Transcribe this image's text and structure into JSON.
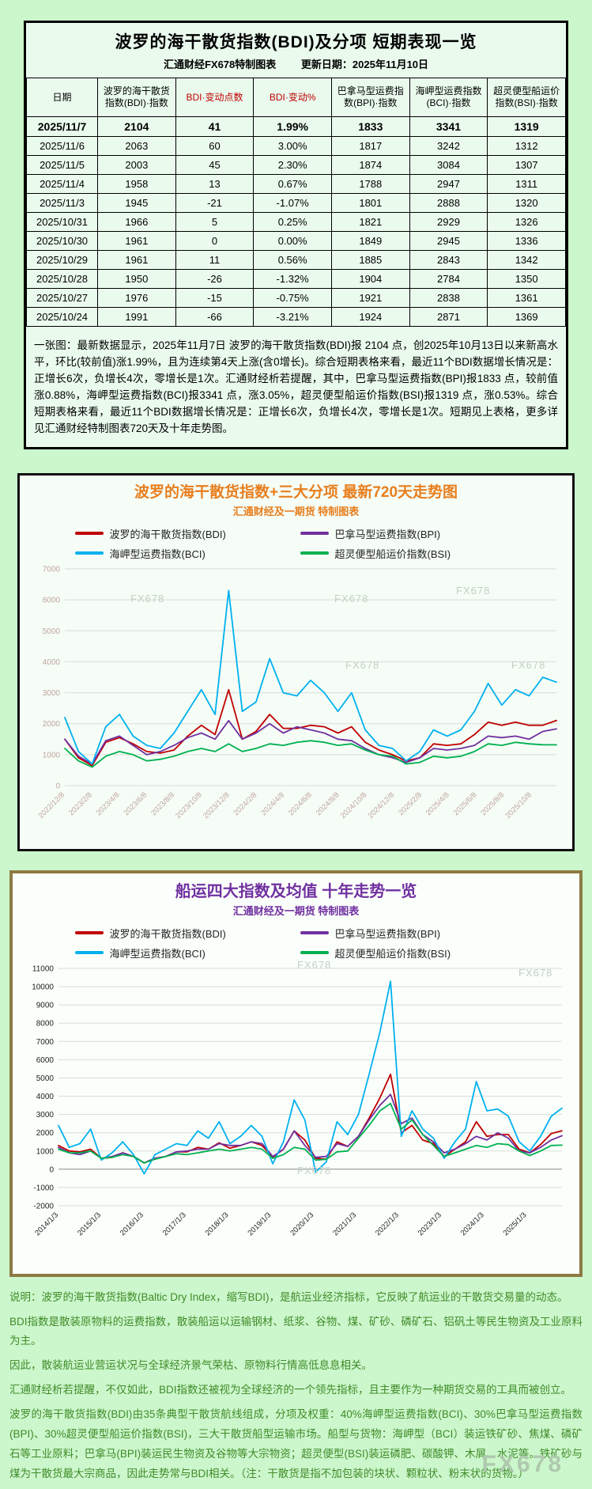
{
  "header": {
    "title": "波罗的海干散货指数(BDI)及分项 短期表现一览",
    "subtitle_left": "汇通财经FX678特制图表",
    "subtitle_right": "更新日期：2025年11月10日"
  },
  "table": {
    "columns": [
      "日期",
      "波罗的海干散货指数(BDI)·指数",
      "BDI·变动点数",
      "BDI·变动%",
      "巴拿马型运费指数(BPI)·指数",
      "海岬型运费指数(BCI)·指数",
      "超灵便型船运价指数(BSI)·指数"
    ],
    "rows": [
      [
        "2025/11/7",
        "2104",
        "41",
        "1.99%",
        "1833",
        "3341",
        "1319"
      ],
      [
        "2025/11/6",
        "2063",
        "60",
        "3.00%",
        "1817",
        "3242",
        "1312"
      ],
      [
        "2025/11/5",
        "2003",
        "45",
        "2.30%",
        "1874",
        "3084",
        "1307"
      ],
      [
        "2025/11/4",
        "1958",
        "13",
        "0.67%",
        "1788",
        "2947",
        "1311"
      ],
      [
        "2025/11/3",
        "1945",
        "-21",
        "-1.07%",
        "1801",
        "2888",
        "1320"
      ],
      [
        "2025/10/31",
        "1966",
        "5",
        "0.25%",
        "1821",
        "2929",
        "1326"
      ],
      [
        "2025/10/30",
        "1961",
        "0",
        "0.00%",
        "1849",
        "2945",
        "1336"
      ],
      [
        "2025/10/29",
        "1961",
        "11",
        "0.56%",
        "1885",
        "2843",
        "1342"
      ],
      [
        "2025/10/28",
        "1950",
        "-26",
        "-1.32%",
        "1904",
        "2784",
        "1350"
      ],
      [
        "2025/10/27",
        "1976",
        "-15",
        "-0.75%",
        "1921",
        "2838",
        "1361"
      ],
      [
        "2025/10/24",
        "1991",
        "-66",
        "-3.21%",
        "1924",
        "2871",
        "1369"
      ]
    ],
    "note": "一张图：最新数据显示，2025年11月7日 波罗的海干散货指数(BDI)报 2104 点，创2025年10月13日以来新高水平，环比(较前值)涨1.99%，且为连续第4天上涨(含0增长)。综合短期表格来看，最近11个BDI数据增长情况是：正增长6次，负增长4次，零增长是1次。汇通财经析若提醒，其中，巴拿马型运费指数(BPI)报1833 点，较前值涨0.88%，海岬型运费指数(BCI)报3341 点，涨3.05%，超灵便型船运价指数(BSI)报1319 点，涨0.53%。综合短期表格来看，最近11个BDI数据增长情况是：正增长6次，负增长4次，零增长是1次。短期见上表格，更多详见汇通财经特制图表720天及十年走势图。"
  },
  "chart_data": [
    {
      "type": "line",
      "title": "波罗的海干散货指数+三大分项  最新720天走势图",
      "subtitle": "汇通财经及一期货 特制图表",
      "title_color": "#e87e1e",
      "ylim": [
        0,
        7000
      ],
      "ytick": 1000,
      "grid": true,
      "legend_position": "top",
      "axis_label_color": "#c0a49e",
      "xspan": 0.95,
      "x_labels": [
        "2022/12/8",
        "2023/2/8",
        "2023/4/8",
        "2023/6/8",
        "2023/8/8",
        "2023/10/8",
        "2023/12/8",
        "2024/2/8",
        "2024/4/8",
        "2024/6/8",
        "2024/8/8",
        "2024/10/8",
        "2024/12/8",
        "2025/2/8",
        "2025/4/8",
        "2025/6/8",
        "2025/8/8",
        "2025/10/8"
      ],
      "series": [
        {
          "name": "波罗的海干散货指数(BDI)",
          "color": "#c00000",
          "values": [
            1500,
            900,
            650,
            1400,
            1550,
            1350,
            1100,
            1050,
            1150,
            1600,
            1950,
            1650,
            3100,
            1500,
            1750,
            2300,
            1850,
            1850,
            1950,
            1900,
            1700,
            1900,
            1400,
            1150,
            1000,
            800,
            900,
            1350,
            1300,
            1350,
            1650,
            2050,
            1950,
            2050,
            1950,
            1950,
            2104
          ]
        },
        {
          "name": "巴拿马型运费指数(BPI)",
          "color": "#7030a0",
          "values": [
            1500,
            950,
            700,
            1450,
            1600,
            1300,
            1000,
            1100,
            1300,
            1550,
            1700,
            1500,
            2100,
            1500,
            1700,
            2000,
            1700,
            1900,
            1800,
            1700,
            1500,
            1450,
            1200,
            1000,
            900,
            750,
            900,
            1200,
            1150,
            1200,
            1300,
            1600,
            1550,
            1600,
            1500,
            1750,
            1833
          ]
        },
        {
          "name": "海岬型运费指数(BCI)",
          "color": "#00b0f0",
          "values": [
            2200,
            1100,
            700,
            1900,
            2300,
            1600,
            1300,
            1200,
            1700,
            2400,
            3100,
            2300,
            6300,
            2400,
            2700,
            4100,
            3000,
            2900,
            3400,
            3000,
            2400,
            3000,
            1800,
            1300,
            1200,
            800,
            1100,
            1800,
            1600,
            1800,
            2400,
            3300,
            2600,
            3100,
            2900,
            3500,
            3341
          ]
        },
        {
          "name": "超灵便型船运价指数(BSI)",
          "color": "#00b050",
          "values": [
            1200,
            800,
            600,
            950,
            1100,
            1000,
            800,
            850,
            950,
            1100,
            1200,
            1100,
            1350,
            1100,
            1200,
            1350,
            1300,
            1400,
            1450,
            1400,
            1300,
            1350,
            1150,
            1000,
            950,
            700,
            750,
            950,
            900,
            950,
            1100,
            1350,
            1300,
            1400,
            1350,
            1320,
            1319
          ]
        }
      ]
    },
    {
      "type": "line",
      "title": "船运四大指数及均值 十年走势一览",
      "subtitle": "汇通财经及一期货 特制图表",
      "title_color": "#7030a0",
      "ylim": [
        -2000,
        11000
      ],
      "ytick": 1000,
      "grid": true,
      "legend_position": "top",
      "axis_label_color": "#222222",
      "xspan": 0.93,
      "x_labels": [
        "2014/1/3",
        "2015/1/3",
        "2016/1/3",
        "2017/1/3",
        "2018/1/3",
        "2019/1/3",
        "2020/1/3",
        "2021/1/3",
        "2022/1/3",
        "2023/1/3",
        "2024/1/3",
        "2025/1/3"
      ],
      "series": [
        {
          "name": "波罗的海干散货指数(BDI)",
          "color": "#c00000",
          "values": [
            1300,
            1000,
            950,
            1100,
            600,
            650,
            900,
            700,
            350,
            600,
            700,
            950,
            950,
            1200,
            1100,
            1450,
            1150,
            1300,
            1500,
            1300,
            650,
            1100,
            2100,
            1600,
            600,
            550,
            1500,
            1250,
            1800,
            2800,
            3900,
            5200,
            2000,
            2400,
            1600,
            1400,
            700,
            1100,
            1500,
            2600,
            1800,
            1900,
            1900,
            1100,
            900,
            1350,
            1950,
            2104
          ]
        },
        {
          "name": "巴拿马型运费指数(BPI)",
          "color": "#7030a0",
          "values": [
            1200,
            900,
            800,
            1000,
            600,
            700,
            900,
            700,
            350,
            600,
            700,
            950,
            1000,
            1100,
            1100,
            1400,
            1300,
            1300,
            1500,
            1400,
            700,
            1100,
            2100,
            1300,
            650,
            700,
            1400,
            1250,
            1800,
            2700,
            3500,
            4100,
            2500,
            2800,
            1900,
            1500,
            900,
            1100,
            1400,
            1800,
            1600,
            2000,
            1700,
            1000,
            900,
            1200,
            1600,
            1833
          ]
        },
        {
          "name": "海岬型运费指数(BCI)",
          "color": "#00b0f0",
          "values": [
            2400,
            1200,
            1400,
            2200,
            500,
            900,
            1500,
            800,
            -250,
            800,
            1100,
            1400,
            1300,
            2100,
            1700,
            2600,
            1400,
            1800,
            2400,
            1800,
            300,
            1500,
            3800,
            2700,
            -150,
            400,
            2600,
            1900,
            3000,
            5200,
            7500,
            10300,
            1800,
            3200,
            2200,
            1700,
            600,
            1500,
            2200,
            4800,
            3200,
            3300,
            2900,
            1500,
            1000,
            1800,
            2900,
            3341
          ]
        },
        {
          "name": "超灵便型船运价指数(BSI)",
          "color": "#00b050",
          "values": [
            1100,
            900,
            900,
            1000,
            600,
            650,
            800,
            700,
            350,
            550,
            700,
            850,
            800,
            900,
            1000,
            1100,
            1000,
            1100,
            1200,
            1100,
            600,
            800,
            1200,
            1100,
            500,
            550,
            950,
            1000,
            1700,
            2400,
            3200,
            3600,
            2200,
            2700,
            1900,
            1300,
            700,
            900,
            1100,
            1300,
            1200,
            1400,
            1350,
            1000,
            750,
            1000,
            1300,
            1319
          ]
        }
      ]
    }
  ],
  "description": {
    "paragraphs": [
      "说明：波罗的海干散货指数(Baltic Dry Index，缩写BDI)，是航运业经济指标，它反映了航运业的干散货交易量的动态。",
      "BDI指数是散装原物料的运费指数，散装船运以运输钢材、纸浆、谷物、煤、矿砂、磷矿石、铝矾土等民生物资及工业原料为主。",
      "因此，散装航运业营运状况与全球经济景气荣枯、原物料行情高低息息相关。",
      "汇通财经析若提醒，不仅如此，BDI指数还被视为全球经济的一个领先指标，且主要作为一种期货交易的工具而被创立。",
      "波罗的海干散货指数(BDI)由35条典型干散货航线组成，分项及权重：40%海岬型运费指数(BCI)、30%巴拿马型运费指数(BPI)、30%超灵便型船运价指数(BSI)，三大干散货船型运输市场。船型与货物：海岬型（BCI）装运铁矿砂、焦煤、磷矿石等工业原料；巴拿马(BPI)装运民生物资及谷物等大宗物资；超灵便型(BSI)装运磷肥、碳酸钾、木屑、水泥等。铁矿砂与煤为干散货最大宗商品，因此走势常与BDI相关。（注：干散货是指不加包装的块状、颗粒状、粉末状的货物。）"
    ]
  },
  "watermark": "FX678"
}
